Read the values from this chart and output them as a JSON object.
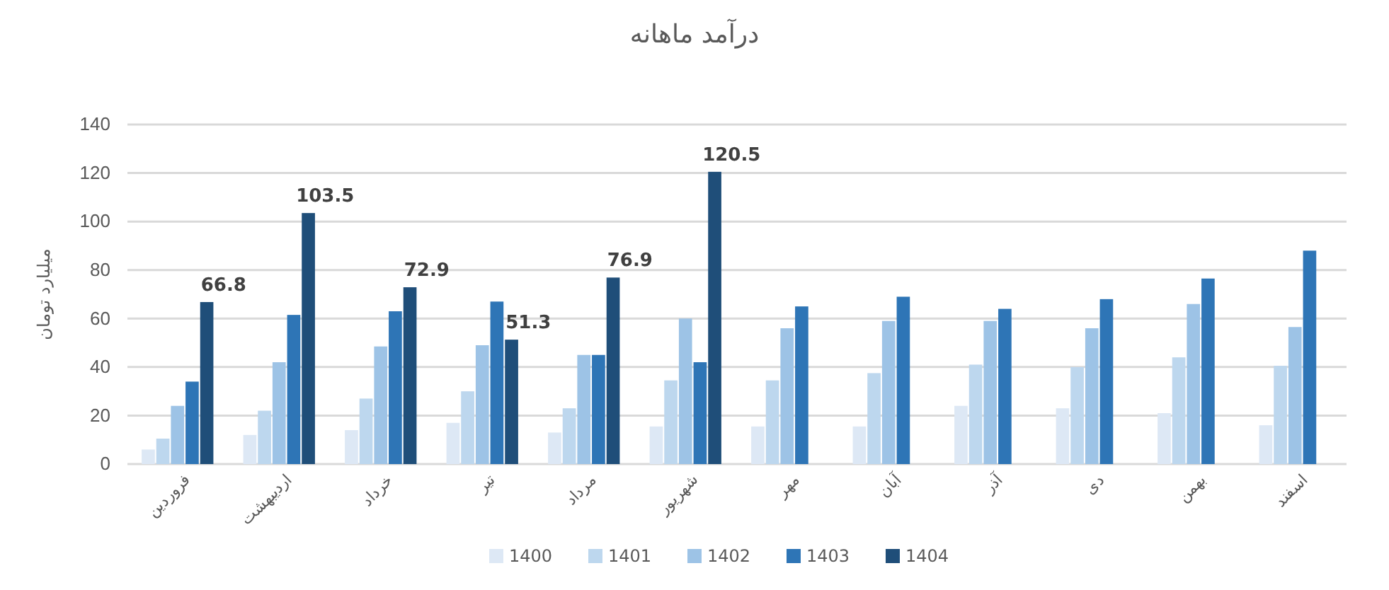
{
  "chart_data": {
    "type": "bar",
    "title": "درآمد ماهانه",
    "ylabel": "میلیارد تومان",
    "categories": [
      "فروردین",
      "اردیبهشت",
      "خرداد",
      "تیر",
      "مرداد",
      "شهریور",
      "مهر",
      "آبان",
      "آذر",
      "دی",
      "بهمن",
      "اسفند"
    ],
    "series": [
      {
        "name": "1400",
        "color": "#dde8f5",
        "values": [
          6,
          12,
          14,
          17,
          13,
          15.5,
          15.5,
          15.5,
          24,
          23,
          21,
          16
        ]
      },
      {
        "name": "1401",
        "color": "#bdd7ee",
        "values": [
          10.5,
          22,
          27,
          30,
          23,
          34.5,
          34.5,
          37.5,
          41,
          40,
          44,
          40.5
        ]
      },
      {
        "name": "1402",
        "color": "#9dc3e6",
        "values": [
          24,
          42,
          48.5,
          49,
          45,
          60,
          56,
          59,
          59,
          56,
          66,
          56.5
        ]
      },
      {
        "name": "1403",
        "color": "#2e75b6",
        "values": [
          34,
          61.5,
          63,
          67,
          45,
          42,
          65,
          69,
          64,
          68,
          76.5,
          88
        ]
      },
      {
        "name": "1404",
        "color": "#1f4e79",
        "values": [
          66.8,
          103.5,
          72.9,
          51.3,
          76.9,
          120.5,
          null,
          null,
          null,
          null,
          null,
          null
        ],
        "value_labels": [
          "66.8",
          "103.5",
          "72.9",
          "51.3",
          "76.9",
          "120.5",
          null,
          null,
          null,
          null,
          null,
          null
        ]
      }
    ],
    "ylim": [
      0,
      140
    ],
    "yticks": [
      0,
      20,
      40,
      60,
      80,
      100,
      120,
      140
    ],
    "grid": "y",
    "legend": "bottom"
  }
}
